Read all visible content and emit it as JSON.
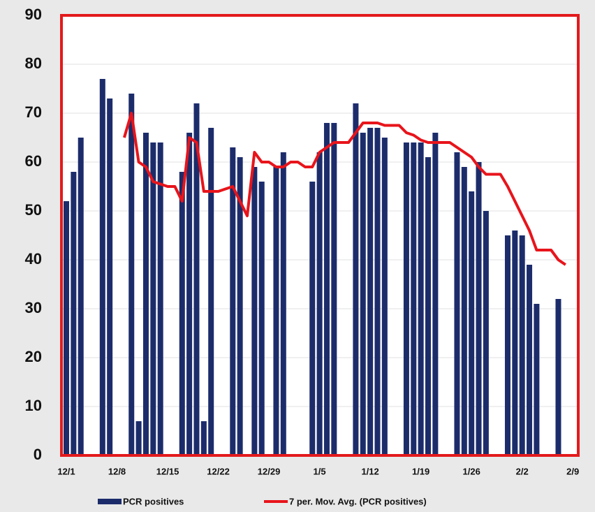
{
  "chart_data": {
    "type": "bar",
    "categories": [
      "12/1",
      null,
      null,
      null,
      null,
      null,
      null,
      "12/8",
      null,
      null,
      null,
      null,
      null,
      null,
      "12/15",
      null,
      null,
      null,
      null,
      null,
      null,
      "12/22",
      null,
      null,
      null,
      null,
      null,
      null,
      "12/29",
      null,
      null,
      null,
      null,
      null,
      null,
      "1/5",
      null,
      null,
      null,
      null,
      null,
      null,
      "1/12",
      null,
      null,
      null,
      null,
      null,
      null,
      "1/19",
      null,
      null,
      null,
      null,
      null,
      null,
      "1/26",
      null,
      null,
      null,
      null,
      null,
      null,
      "2/2",
      null,
      null,
      null,
      null,
      null,
      null,
      "2/9"
    ],
    "series": [
      {
        "name": "PCR positives",
        "type": "bar",
        "color": "#1c2c6b",
        "values": [
          52,
          58,
          65,
          null,
          null,
          77,
          73,
          null,
          null,
          74,
          7,
          66,
          64,
          64,
          null,
          null,
          58,
          66,
          72,
          7,
          67,
          null,
          null,
          63,
          61,
          null,
          59,
          56,
          null,
          59,
          62,
          null,
          null,
          null,
          56,
          62,
          68,
          68,
          null,
          null,
          72,
          66,
          67,
          67,
          65,
          null,
          null,
          64,
          64,
          64,
          61,
          66,
          null,
          null,
          62,
          59,
          54,
          60,
          50,
          null,
          null,
          45,
          46,
          45,
          39,
          31,
          null,
          null,
          32,
          null,
          null
        ]
      },
      {
        "name": "7 per. Mov. Avg. (PCR positives)",
        "type": "line",
        "color": "#e8141b",
        "values": [
          null,
          null,
          null,
          null,
          null,
          null,
          null,
          null,
          65,
          70,
          60,
          59,
          56,
          55.5,
          55,
          55,
          52,
          65,
          64,
          54,
          54,
          54,
          54.5,
          55,
          52,
          49,
          62,
          60,
          60,
          59,
          59,
          60,
          60,
          59,
          59,
          62,
          63,
          64,
          64,
          64,
          66,
          68,
          68,
          68,
          67.5,
          67.5,
          67.5,
          66,
          65.5,
          64.5,
          64,
          64,
          64,
          64,
          63,
          62,
          61,
          59,
          57.5,
          57.5,
          57.5,
          55,
          52,
          49,
          46,
          42,
          42,
          42,
          40,
          39,
          null
        ]
      }
    ],
    "ylim": [
      0,
      90
    ],
    "yticks": [
      0,
      10,
      20,
      30,
      40,
      50,
      60,
      70,
      80,
      90
    ],
    "grid": true,
    "border_color": "#e31a1c"
  }
}
